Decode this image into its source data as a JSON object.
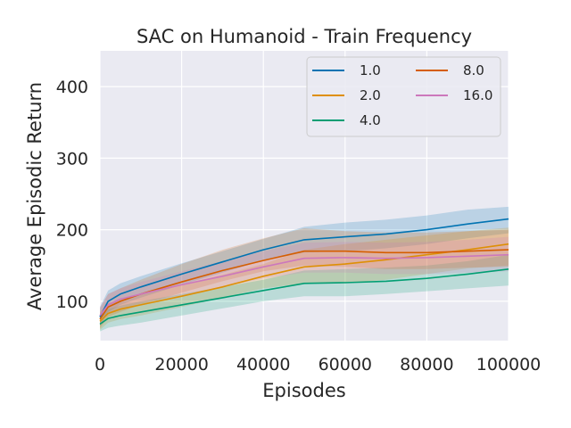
{
  "chart_data": {
    "type": "line",
    "title": "SAC on Humanoid - Train Frequency",
    "xlabel": "Episodes",
    "ylabel": "Average Episodic Return",
    "xlim": [
      0,
      100000
    ],
    "ylim": [
      45,
      450
    ],
    "xticks": [
      0,
      20000,
      40000,
      60000,
      80000,
      100000
    ],
    "xtick_labels": [
      "0",
      "20000",
      "40000",
      "60000",
      "80000",
      "100000"
    ],
    "yticks": [
      100,
      200,
      300,
      400
    ],
    "ytick_labels": [
      "100",
      "200",
      "300",
      "400"
    ],
    "grid": true,
    "legend_placement": "top-right",
    "legend_columns": 2,
    "x": [
      0,
      2000,
      5000,
      10000,
      20000,
      30000,
      40000,
      50000,
      60000,
      70000,
      80000,
      90000,
      100000
    ],
    "series": [
      {
        "name": "1.0",
        "color": "#0173b2",
        "values": [
          78,
          100,
          110,
          120,
          138,
          155,
          172,
          186,
          190,
          194,
          200,
          208,
          215
        ],
        "lower": [
          65,
          85,
          95,
          105,
          123,
          140,
          157,
          168,
          170,
          174,
          180,
          188,
          195
        ],
        "upper": [
          92,
          115,
          125,
          135,
          153,
          170,
          187,
          204,
          210,
          214,
          220,
          228,
          232
        ]
      },
      {
        "name": "2.0",
        "color": "#de8f05",
        "values": [
          72,
          83,
          89,
          95,
          107,
          120,
          135,
          148,
          152,
          158,
          165,
          172,
          180
        ],
        "lower": [
          60,
          70,
          75,
          80,
          92,
          105,
          118,
          125,
          125,
          130,
          138,
          146,
          150
        ],
        "upper": [
          85,
          97,
          103,
          110,
          123,
          137,
          152,
          172,
          180,
          186,
          192,
          198,
          203
        ]
      },
      {
        "name": "4.0",
        "color": "#029e73",
        "values": [
          68,
          76,
          80,
          85,
          95,
          105,
          115,
          125,
          126,
          128,
          132,
          138,
          145
        ],
        "lower": [
          58,
          63,
          66,
          70,
          80,
          90,
          100,
          107,
          107,
          110,
          114,
          118,
          122
        ],
        "upper": [
          78,
          89,
          94,
          100,
          110,
          120,
          130,
          143,
          145,
          147,
          150,
          156,
          165
        ]
      },
      {
        "name": "8.0",
        "color": "#d55e00",
        "values": [
          75,
          92,
          100,
          110,
          127,
          143,
          157,
          170,
          170,
          168,
          168,
          170,
          172
        ],
        "lower": [
          62,
          78,
          85,
          95,
          112,
          128,
          142,
          150,
          148,
          145,
          145,
          147,
          148
        ],
        "upper": [
          90,
          110,
          118,
          130,
          152,
          172,
          188,
          202,
          198,
          196,
          196,
          198,
          200
        ]
      },
      {
        "name": "16.0",
        "color": "#cc78bc",
        "values": [
          80,
          95,
          103,
          110,
          123,
          135,
          148,
          160,
          161,
          160,
          161,
          163,
          165
        ],
        "lower": [
          68,
          82,
          90,
          97,
          108,
          120,
          132,
          140,
          140,
          138,
          138,
          140,
          142
        ],
        "upper": [
          92,
          110,
          118,
          127,
          142,
          156,
          170,
          182,
          183,
          182,
          183,
          186,
          190
        ]
      }
    ]
  }
}
